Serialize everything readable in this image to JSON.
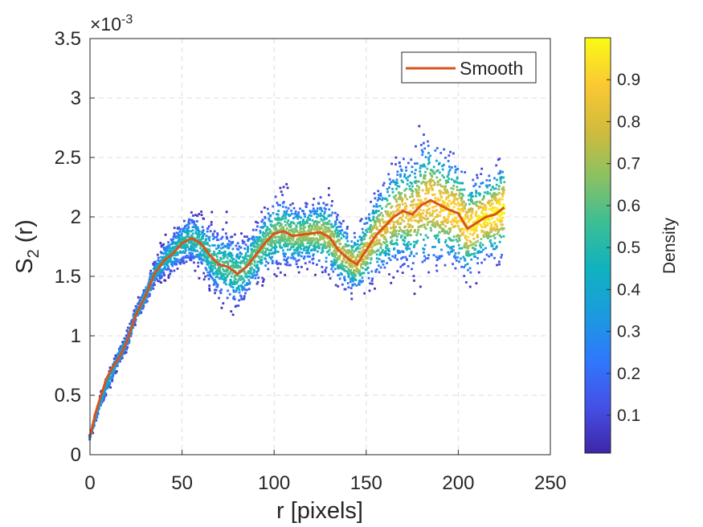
{
  "chart_data": {
    "type": "scatter",
    "xlabel": "r [pixels]",
    "ylabel_main": "S",
    "ylabel_sub": "2",
    "ylabel_rest": " (r)",
    "exponent_label": "×10",
    "exponent_power": "-3",
    "xlim": [
      0,
      250
    ],
    "ylim": [
      0,
      3.5
    ],
    "grid": true,
    "x_ticks": [
      "0",
      "50",
      "100",
      "150",
      "200",
      "250"
    ],
    "y_ticks": [
      "0",
      "0.5",
      "1",
      "1.5",
      "2",
      "2.5",
      "3",
      "3.5"
    ],
    "legend": {
      "placement": "top-right",
      "entries": [
        {
          "name": "Smooth",
          "color": "#D95319"
        }
      ]
    },
    "smooth_series": {
      "name": "Smooth",
      "color": "#D95319",
      "x": [
        0,
        3,
        6,
        9,
        12,
        16,
        20,
        25,
        30,
        35,
        40,
        45,
        50,
        55,
        60,
        65,
        70,
        75,
        80,
        85,
        90,
        95,
        100,
        105,
        110,
        115,
        120,
        125,
        130,
        135,
        140,
        145,
        150,
        155,
        160,
        165,
        170,
        175,
        180,
        185,
        190,
        195,
        200,
        205,
        210,
        215,
        220,
        225
      ],
      "y": [
        0.15,
        0.35,
        0.5,
        0.64,
        0.73,
        0.82,
        0.95,
        1.18,
        1.33,
        1.52,
        1.63,
        1.69,
        1.78,
        1.82,
        1.78,
        1.68,
        1.6,
        1.58,
        1.52,
        1.58,
        1.68,
        1.78,
        1.86,
        1.88,
        1.84,
        1.85,
        1.86,
        1.87,
        1.83,
        1.72,
        1.65,
        1.6,
        1.72,
        1.84,
        1.92,
        2.0,
        2.05,
        2.02,
        2.1,
        2.14,
        2.1,
        2.06,
        2.03,
        1.9,
        1.95,
        2.0,
        2.02,
        2.08
      ]
    },
    "scatter_band": {
      "x": [
        0,
        5,
        10,
        15,
        20,
        25,
        30,
        35,
        40,
        45,
        50,
        55,
        60,
        65,
        70,
        75,
        80,
        85,
        90,
        95,
        100,
        105,
        110,
        115,
        120,
        125,
        130,
        135,
        140,
        145,
        150,
        155,
        160,
        165,
        170,
        175,
        180,
        185,
        190,
        195,
        200,
        205,
        210,
        215,
        220,
        225
      ],
      "center": [
        0.15,
        0.42,
        0.62,
        0.8,
        0.95,
        1.18,
        1.33,
        1.52,
        1.63,
        1.7,
        1.78,
        1.82,
        1.78,
        1.68,
        1.6,
        1.58,
        1.52,
        1.58,
        1.68,
        1.78,
        1.86,
        1.88,
        1.84,
        1.85,
        1.86,
        1.87,
        1.83,
        1.72,
        1.65,
        1.6,
        1.72,
        1.84,
        1.92,
        2.0,
        2.05,
        2.02,
        2.1,
        2.14,
        2.1,
        2.06,
        2.03,
        1.9,
        1.95,
        2.0,
        2.02,
        2.08
      ],
      "spread": [
        0.03,
        0.06,
        0.08,
        0.08,
        0.08,
        0.08,
        0.09,
        0.12,
        0.16,
        0.2,
        0.22,
        0.24,
        0.26,
        0.3,
        0.34,
        0.36,
        0.34,
        0.3,
        0.3,
        0.32,
        0.36,
        0.36,
        0.32,
        0.3,
        0.3,
        0.34,
        0.36,
        0.34,
        0.3,
        0.3,
        0.36,
        0.42,
        0.46,
        0.5,
        0.52,
        0.55,
        0.62,
        0.66,
        0.6,
        0.55,
        0.55,
        0.5,
        0.45,
        0.42,
        0.45,
        0.5
      ]
    },
    "colorbar": {
      "label": "Density",
      "ticks": [
        "0.1",
        "0.2",
        "0.3",
        "0.4",
        "0.5",
        "0.6",
        "0.7",
        "0.8",
        "0.9"
      ],
      "range": [
        0.01,
        1.0
      ],
      "colormap": "parula",
      "colors": [
        "#3E26A8",
        "#4550E6",
        "#2E78FD",
        "#1B9BDE",
        "#0FB2BF",
        "#3CBE95",
        "#8BC162",
        "#D2BB3C",
        "#FBC932",
        "#F9FB15"
      ]
    }
  }
}
